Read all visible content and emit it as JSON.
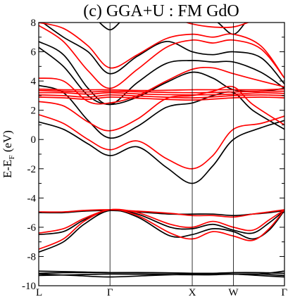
{
  "chart_data": {
    "type": "line",
    "title": "(c) GGA+U : FM GdO",
    "ylabel_main": "E-E",
    "ylabel_sub": "F",
    "ylabel_unit": " (eV)",
    "ylim": [
      -10,
      8
    ],
    "y_ticks": [
      -10,
      -8,
      -6,
      -4,
      -2,
      0,
      2,
      4,
      6,
      8
    ],
    "xlim": [
      0,
      2.987
    ],
    "x_ticks": [
      {
        "label": "L",
        "x": 0.0
      },
      {
        "label": "Γ",
        "x": 0.866
      },
      {
        "label": "X",
        "x": 1.866
      },
      {
        "label": "W",
        "x": 2.366
      },
      {
        "label": "Γ",
        "x": 2.987
      }
    ],
    "grid": false,
    "series": [
      {
        "color": "#000000",
        "x": [
          0,
          0.433,
          0.866,
          1.366,
          1.866,
          2.116,
          2.366,
          2.676,
          2.987
        ],
        "values": [
          -9.3,
          -9.25,
          -9.2,
          -9.22,
          -9.25,
          -9.25,
          -9.2,
          -9.2,
          -9.3
        ]
      },
      {
        "color": "#000000",
        "x": [
          0,
          0.433,
          0.866,
          1.366,
          1.866,
          2.116,
          2.366,
          2.676,
          2.987
        ],
        "values": [
          -9.15,
          -9.1,
          -9.1,
          -9.12,
          -9.15,
          -9.15,
          -9.1,
          -9.1,
          -9.15
        ]
      },
      {
        "color": "#000000",
        "x": [
          0,
          0.433,
          0.866,
          1.366,
          1.866,
          2.116,
          2.366,
          2.676,
          2.987
        ],
        "values": [
          -9.0,
          -9.05,
          -9.1,
          -9.1,
          -9.15,
          -9.15,
          -9.2,
          -9.2,
          -9.0
        ]
      },
      {
        "color": "#000000",
        "x": [
          0,
          0.433,
          0.866,
          1.366,
          1.866,
          2.116,
          2.366,
          2.676,
          2.987
        ],
        "values": [
          -9.2,
          -9.3,
          -9.4,
          -9.3,
          -9.2,
          -9.2,
          -9.2,
          -9.3,
          -9.4
        ]
      },
      {
        "color": "#000000",
        "x": [
          0,
          0.3,
          0.55,
          0.866,
          1.2,
          1.6,
          1.866,
          2.116,
          2.366,
          2.6,
          2.8,
          2.987
        ],
        "values": [
          -7.7,
          -7.0,
          -5.8,
          -4.85,
          -5.3,
          -6.6,
          -6.5,
          -6.1,
          -6.3,
          -6.8,
          -6.2,
          -4.85
        ]
      },
      {
        "color": "#000000",
        "x": [
          0,
          0.3,
          0.55,
          0.866,
          1.2,
          1.6,
          1.866,
          2.116,
          2.366,
          2.6,
          2.8,
          2.987
        ],
        "values": [
          -6.5,
          -6.3,
          -5.5,
          -4.85,
          -5.1,
          -6.0,
          -6.1,
          -5.8,
          -6.2,
          -6.4,
          -5.7,
          -4.85
        ]
      },
      {
        "color": "#000000",
        "x": [
          0,
          0.3,
          0.55,
          0.866,
          1.2,
          1.6,
          1.866,
          2.116,
          2.366,
          2.6,
          2.8,
          2.987
        ],
        "values": [
          -5.0,
          -5.0,
          -4.9,
          -4.85,
          -4.95,
          -5.1,
          -5.1,
          -5.1,
          -5.2,
          -5.1,
          -5.0,
          -4.85
        ]
      },
      {
        "color": "#ff0000",
        "x": [
          0,
          0.3,
          0.55,
          0.866,
          1.2,
          1.6,
          1.866,
          2.116,
          2.366,
          2.6,
          2.8,
          2.987
        ],
        "values": [
          -7.5,
          -6.8,
          -5.6,
          -4.8,
          -5.2,
          -6.4,
          -6.8,
          -6.3,
          -6.6,
          -6.9,
          -6.1,
          -4.8
        ]
      },
      {
        "color": "#ff0000",
        "x": [
          0,
          0.3,
          0.55,
          0.866,
          1.2,
          1.6,
          1.866,
          2.116,
          2.366,
          2.6,
          2.8,
          2.987
        ],
        "values": [
          -6.4,
          -6.1,
          -5.4,
          -4.8,
          -5.0,
          -5.8,
          -6.0,
          -5.6,
          -6.0,
          -6.2,
          -5.5,
          -4.8
        ]
      },
      {
        "color": "#ff0000",
        "x": [
          0,
          0.3,
          0.55,
          0.866,
          1.2,
          1.6,
          1.866,
          2.116,
          2.366,
          2.6,
          2.8,
          2.987
        ],
        "values": [
          -4.95,
          -4.95,
          -4.85,
          -4.8,
          -4.9,
          -5.05,
          -5.2,
          -5.2,
          -5.3,
          -5.1,
          -4.95,
          -4.8
        ]
      },
      {
        "color": "#000000",
        "x": [
          0,
          0.3,
          0.6,
          0.866,
          1.2,
          1.55,
          1.866,
          2.116,
          2.366,
          2.7,
          2.987
        ],
        "values": [
          1.2,
          0.7,
          -0.3,
          -1.1,
          -0.5,
          -1.9,
          -3.0,
          -1.8,
          0.0,
          0.8,
          1.3
        ]
      },
      {
        "color": "#000000",
        "x": [
          0,
          0.3,
          0.6,
          0.866,
          1.2,
          1.55,
          1.866,
          2.116,
          2.366,
          2.6,
          2.987
        ],
        "values": [
          3.7,
          3.2,
          1.3,
          0.1,
          0.9,
          2.2,
          2.5,
          3.0,
          3.2,
          2.0,
          0.7
        ]
      },
      {
        "color": "#000000",
        "x": [
          0,
          0.3,
          0.6,
          0.866,
          1.2,
          1.55,
          1.866,
          2.116,
          2.366,
          2.7,
          2.987
        ],
        "values": [
          6.3,
          5.0,
          3.0,
          2.4,
          2.9,
          3.9,
          4.6,
          4.2,
          3.4,
          3.3,
          3.5
        ]
      },
      {
        "color": "#000000",
        "x": [
          0,
          0.3,
          0.6,
          0.866,
          1.2,
          1.55,
          1.866,
          2.116,
          2.366,
          2.7,
          2.987
        ],
        "values": [
          6.7,
          5.8,
          3.5,
          2.4,
          3.9,
          5.2,
          5.4,
          5.3,
          5.3,
          4.6,
          3.5
        ]
      },
      {
        "color": "#000000",
        "x": [
          0,
          0.3,
          0.6,
          0.866,
          1.2,
          1.55,
          1.866,
          2.116,
          2.366,
          2.7,
          2.987
        ],
        "values": [
          8.2,
          7.0,
          6.0,
          4.5,
          5.7,
          6.7,
          6.0,
          5.8,
          6.0,
          5.6,
          3.8
        ]
      },
      {
        "color": "#000000",
        "x": [
          0.72,
          0.866,
          1.0
        ],
        "values": [
          8.1,
          7.5,
          8.1
        ]
      },
      {
        "color": "#000000",
        "x": [
          1.75,
          1.95,
          2.15,
          2.366,
          2.55,
          2.7
        ],
        "values": [
          8.2,
          8.3,
          8.1,
          7.2,
          8.2,
          8.3
        ]
      },
      {
        "color": "#ff0000",
        "x": [
          0,
          0.3,
          0.6,
          0.866,
          1.2,
          1.55,
          1.866,
          2.116,
          2.366,
          2.7,
          2.987
        ],
        "values": [
          1.7,
          1.1,
          0.0,
          -0.7,
          -0.1,
          -1.3,
          -2.0,
          -1.1,
          0.7,
          1.1,
          1.6
        ]
      },
      {
        "color": "#ff0000",
        "x": [
          0,
          0.3,
          0.6,
          0.866,
          1.2,
          1.55,
          1.866,
          2.116,
          2.366,
          2.6,
          2.987
        ],
        "values": [
          2.6,
          2.3,
          1.2,
          0.6,
          1.4,
          2.8,
          3.0,
          3.3,
          3.6,
          2.4,
          1.0
        ]
      },
      {
        "color": "#ff0000",
        "x": [
          0,
          0.3,
          0.6,
          0.866,
          1.2,
          1.55,
          1.866,
          2.116,
          2.366,
          2.7,
          2.987
        ],
        "values": [
          4.2,
          4.0,
          2.6,
          2.5,
          3.0,
          4.0,
          4.8,
          4.9,
          4.5,
          4.0,
          3.6
        ]
      },
      {
        "color": "#ff0000",
        "x": [
          0,
          0.3,
          0.6,
          0.866,
          1.2,
          1.55,
          1.866,
          2.116,
          2.366,
          2.7,
          2.987
        ],
        "values": [
          7.8,
          6.7,
          4.7,
          3.5,
          4.8,
          6.3,
          6.8,
          6.6,
          6.8,
          6.2,
          4.2
        ]
      },
      {
        "color": "#ff0000",
        "x": [
          0,
          0.3,
          0.6,
          0.866,
          1.2,
          1.55,
          1.866,
          2.116,
          2.366,
          2.7,
          2.987
        ],
        "values": [
          8.0,
          7.6,
          6.4,
          4.9,
          5.8,
          6.9,
          7.2,
          7.0,
          7.2,
          6.4,
          4.2
        ]
      },
      {
        "color": "#ff0000",
        "x": [
          1.3,
          1.6,
          1.866,
          2.1,
          2.366,
          2.6,
          2.8
        ],
        "values": [
          8.2,
          8.3,
          7.9,
          7.7,
          7.7,
          8.1,
          8.3
        ]
      },
      {
        "color": "#ff0000",
        "x": [
          0,
          0.3,
          0.6,
          0.866,
          1.3,
          1.866,
          2.366,
          2.7,
          2.987
        ],
        "values": [
          3.35,
          3.3,
          3.25,
          3.3,
          3.25,
          3.2,
          3.25,
          3.3,
          3.3
        ]
      },
      {
        "color": "#ff0000",
        "x": [
          0,
          0.3,
          0.6,
          0.866,
          1.3,
          1.866,
          2.366,
          2.7,
          2.987
        ],
        "values": [
          3.2,
          3.2,
          3.1,
          3.2,
          3.1,
          3.05,
          3.1,
          3.2,
          3.15
        ]
      },
      {
        "color": "#ff0000",
        "x": [
          0,
          0.3,
          0.6,
          0.866,
          1.3,
          1.866,
          2.366,
          2.7,
          2.987
        ],
        "values": [
          3.05,
          3.0,
          2.9,
          3.05,
          2.95,
          2.85,
          3.0,
          3.05,
          3.0
        ]
      },
      {
        "color": "#ff0000",
        "x": [
          0,
          0.3,
          0.6,
          0.866,
          1.3,
          1.866,
          2.366,
          2.7,
          2.987
        ],
        "values": [
          2.9,
          2.85,
          2.75,
          2.9,
          2.8,
          2.7,
          2.85,
          2.9,
          2.85
        ]
      },
      {
        "color": "#ff0000",
        "x": [
          0,
          0.3,
          0.6,
          0.866,
          1.3,
          1.866,
          2.366,
          2.7,
          2.987
        ],
        "values": [
          3.45,
          3.4,
          3.4,
          3.4,
          3.35,
          3.4,
          3.4,
          3.4,
          3.45
        ]
      }
    ]
  }
}
